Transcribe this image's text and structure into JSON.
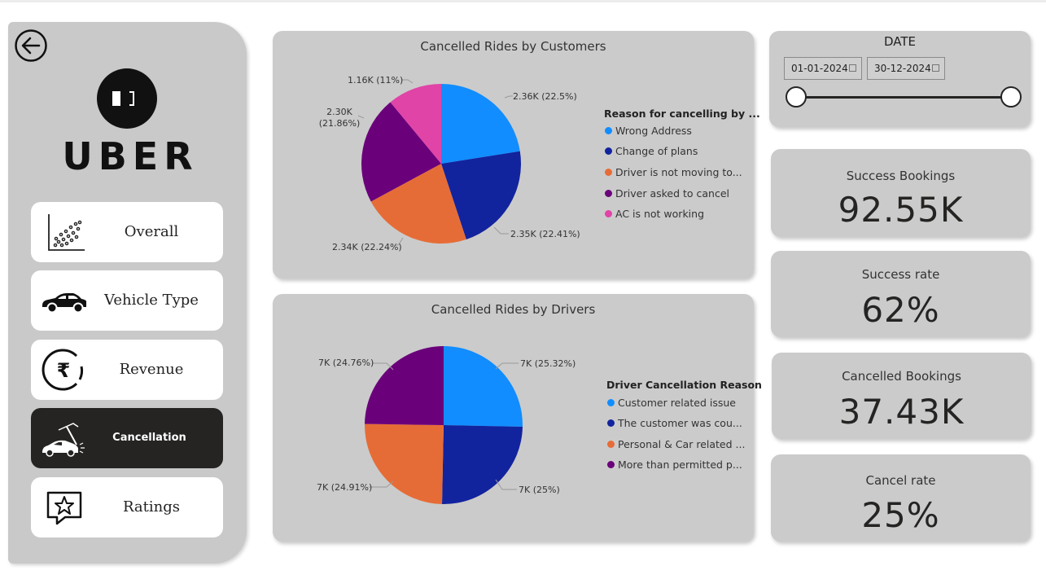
{
  "sidebar": {
    "logo_text": "UBER",
    "nav": [
      {
        "label": "Overall",
        "icon": "scatter-chart-icon"
      },
      {
        "label": "Vehicle Type",
        "icon": "car-icon"
      },
      {
        "label": "Revenue",
        "icon": "rupee-icon"
      },
      {
        "label": "Cancellation",
        "icon": "car-crash-icon",
        "active": true
      },
      {
        "label": "Ratings",
        "icon": "star-review-icon"
      }
    ]
  },
  "date_slicer": {
    "title": "DATE",
    "start": "01-01-2024",
    "end": "30-12-2024"
  },
  "kpis": [
    {
      "label": "Success Bookings",
      "value": "92.55K"
    },
    {
      "label": "Success rate",
      "value": "62%"
    },
    {
      "label": "Cancelled Bookings",
      "value": "37.43K"
    },
    {
      "label": "Cancel rate",
      "value": "25%"
    }
  ],
  "colors": {
    "blue": "#118DFF",
    "navy": "#12239E",
    "orange": "#E66C37",
    "purple": "#6B007B",
    "pink": "#E044A7",
    "card": "#cbcbcb",
    "dark": "#252423"
  },
  "chart_data": [
    {
      "type": "pie",
      "title": "Cancelled Rides by Customers",
      "legend_title": "Reason for cancelling by ...",
      "legend_placement": "right",
      "series": [
        {
          "name": "Wrong Address",
          "legend": "Wrong Address",
          "value": 2.36,
          "percent": 22.5,
          "label": "2.36K (22.5%)",
          "color": "#118DFF"
        },
        {
          "name": "Change of plans",
          "legend": "Change of plans",
          "value": 2.35,
          "percent": 22.41,
          "label": "2.35K (22.41%)",
          "color": "#12239E"
        },
        {
          "name": "Driver is not moving towards pickup location",
          "legend": "Driver is not moving to...",
          "value": 2.34,
          "percent": 22.24,
          "label": "2.34K (22.24%)",
          "color": "#E66C37"
        },
        {
          "name": "Driver asked to cancel",
          "legend": "Driver asked to cancel",
          "value": 2.3,
          "percent": 21.86,
          "label": "2.30K (21.86%)",
          "color": "#6B007B"
        },
        {
          "name": "AC is not working",
          "legend": "AC is not working",
          "value": 1.16,
          "percent": 11,
          "label": "1.16K (11%)",
          "color": "#E044A7"
        }
      ]
    },
    {
      "type": "pie",
      "title": "Cancelled Rides by Drivers",
      "legend_title": "Driver Cancellation Reason",
      "legend_placement": "right",
      "series": [
        {
          "name": "Customer related issue",
          "legend": "Customer related issue",
          "value": 7,
          "percent": 25.32,
          "label": "7K (25.32%)",
          "color": "#118DFF"
        },
        {
          "name": "The customer was coughing/sick",
          "legend": "The customer was cou...",
          "value": 7,
          "percent": 25,
          "label": "7K (25%)",
          "color": "#12239E"
        },
        {
          "name": "Personal & Car related issues",
          "legend": "Personal & Car related ...",
          "value": 7,
          "percent": 24.91,
          "label": "7K (24.91%)",
          "color": "#E66C37"
        },
        {
          "name": "More than permitted people in there",
          "legend": "More than permitted p...",
          "value": 7,
          "percent": 24.76,
          "label": "7K (24.76%)",
          "color": "#6B007B"
        }
      ]
    }
  ]
}
